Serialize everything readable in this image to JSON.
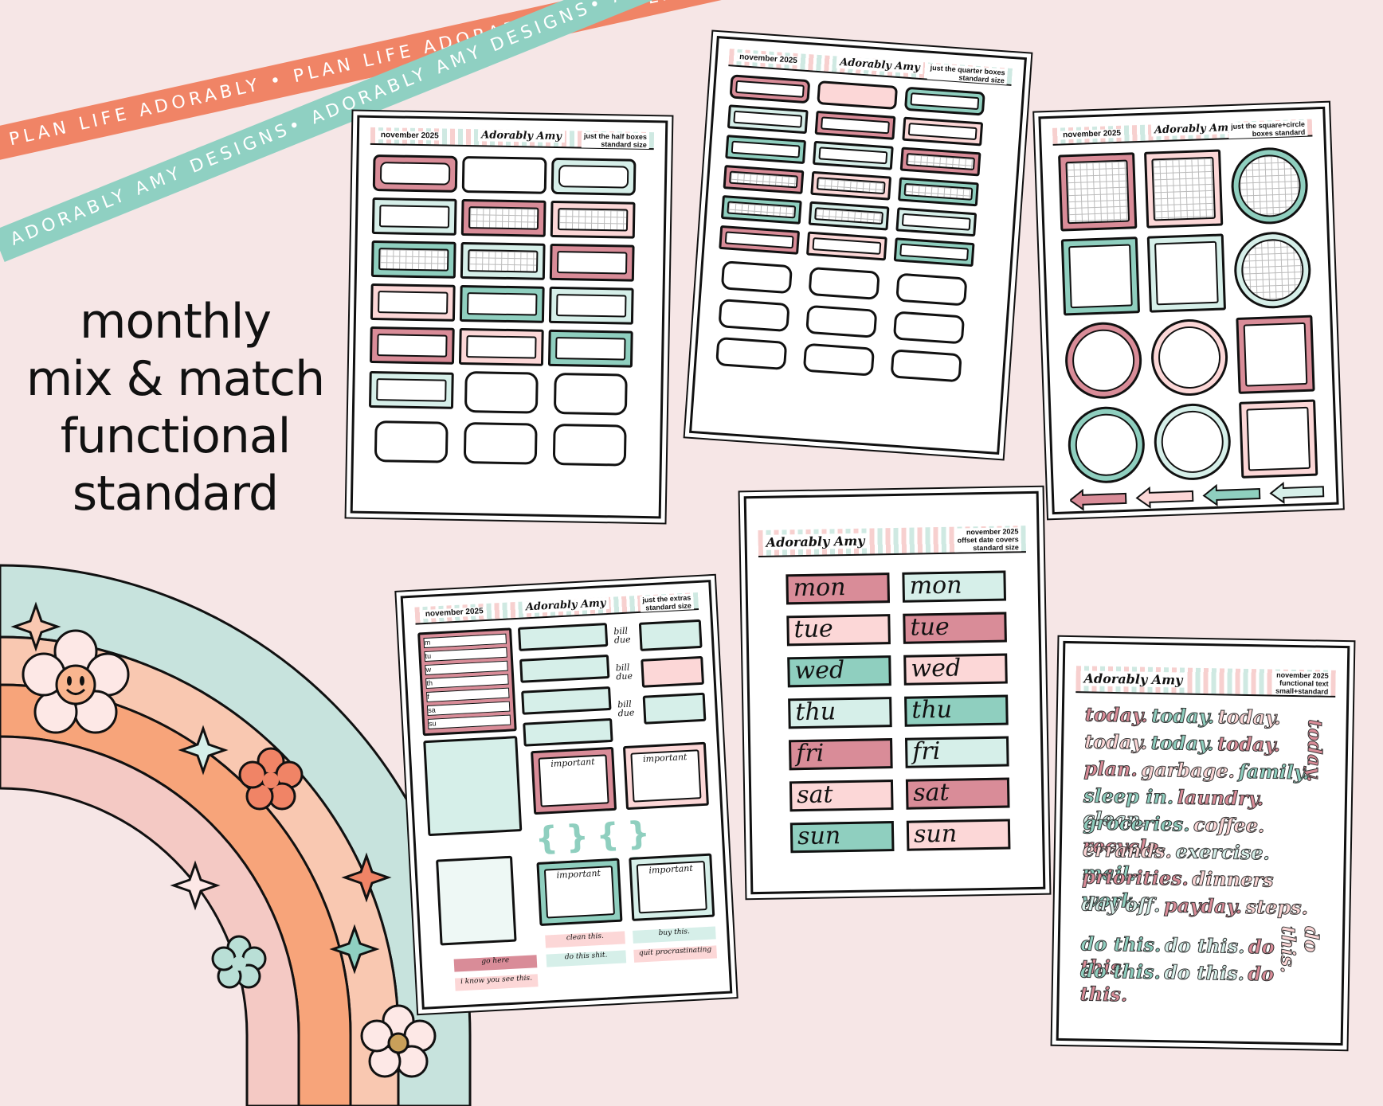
{
  "ribbons": {
    "top": "PLAN LIFE ADORABLY • PLAN LIFE ADORABLY • PLAN LIFE ADORABLY",
    "bottom": "ADORABLY AMY DESIGNS• ADORABLY AMY DESIGNS• ADORABLY AMY DESIGNS"
  },
  "headline": {
    "line1": "monthly",
    "line2": "mix & match",
    "line3": "functional",
    "line4": "standard"
  },
  "sheets": {
    "half": {
      "month": "november 2025",
      "brand": "Adorably Amy",
      "title1": "just the half boxes",
      "title2": "standard size"
    },
    "quarter": {
      "month": "november 2025",
      "brand": "Adorably Amy",
      "title1": "just the quarter boxes",
      "title2": "standard size"
    },
    "square": {
      "month": "november 2025",
      "brand": "Adorably Amy",
      "title1": "just the square+circle",
      "title2": "boxes standard"
    },
    "extras": {
      "month": "november 2025",
      "brand": "Adorably Amy",
      "title1": "just the extras",
      "title2": "standard size",
      "bill_due": "bill due",
      "important": "important",
      "strips": [
        "clean this.",
        "buy this.",
        "go here",
        "do this shit.",
        "quit procrastinating",
        "i know you see this."
      ],
      "days_short": [
        "m",
        "tu",
        "w",
        "th",
        "f",
        "sa",
        "su"
      ]
    },
    "dates": {
      "month": "november 2025",
      "brand": "Adorably Amy",
      "title1": "offset date covers",
      "title2": "standard size",
      "days": [
        "mon",
        "tue",
        "wed",
        "thu",
        "fri",
        "sat",
        "sun"
      ]
    },
    "text": {
      "month": "november 2025",
      "brand": "Adorably Amy",
      "title1": "functional text",
      "title2": "small+standard",
      "words": [
        [
          "today.",
          "today.",
          "today."
        ],
        [
          "today.",
          "today.",
          "today."
        ],
        [
          "plan.",
          "garbage.",
          "family."
        ],
        [
          "sleep in.",
          "laundry.",
          "clean."
        ],
        [
          "groceries.",
          "coffee.",
          "recycle."
        ],
        [
          "errands.",
          "exercise.",
          "mail."
        ],
        [
          "priorities.",
          "dinners",
          "work."
        ],
        [
          "day off.",
          "payday.",
          "steps."
        ],
        [
          "do this.",
          "do this.",
          "do this."
        ],
        [
          "do this.",
          "do this.",
          "do this."
        ]
      ],
      "vertical1": "today.",
      "vertical2": "do this."
    }
  },
  "colors": {
    "pink": "#d98c98",
    "light_pink": "#fcd7d7",
    "teal": "#8fcfbf",
    "light_teal": "#d6efe9",
    "coral": "#f08466",
    "mint": "#8fd0c2",
    "background": "#f6e6e6"
  }
}
